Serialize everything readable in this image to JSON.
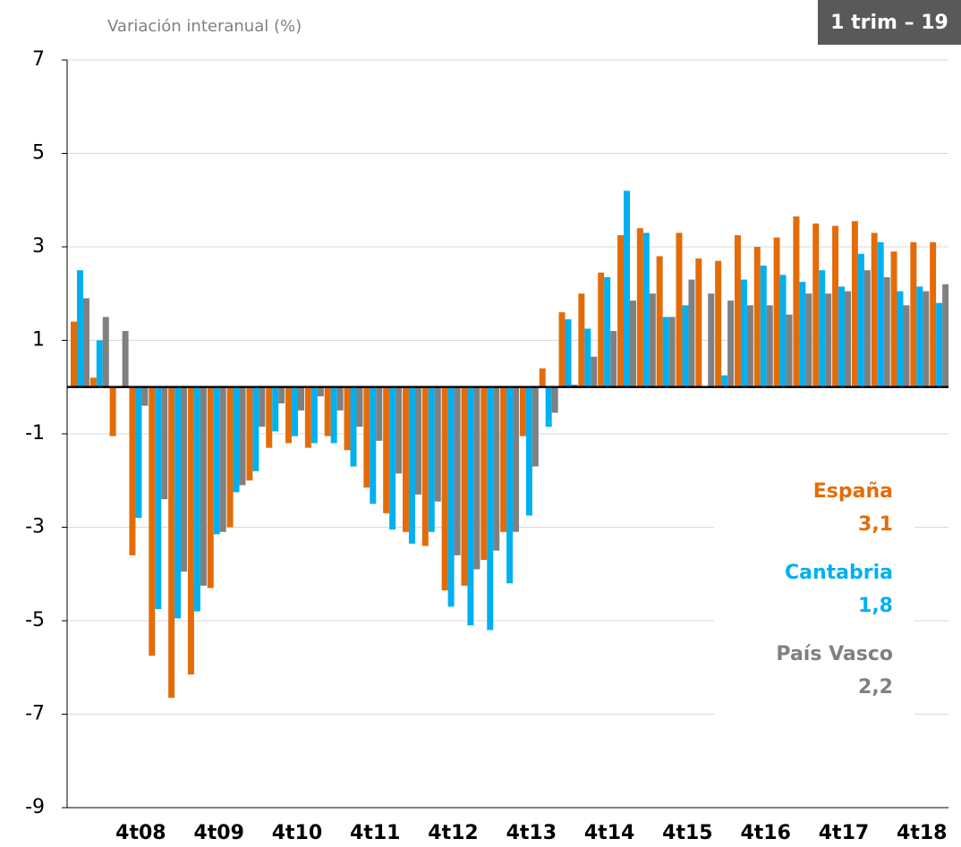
{
  "chart_data": {
    "type": "bar",
    "subtitle": "Variación interanual (%)",
    "badge": "1 trim – 19",
    "categories": [
      null,
      null,
      null,
      "4t08",
      null,
      null,
      null,
      "4t09",
      null,
      null,
      null,
      "4t10",
      null,
      null,
      null,
      "4t11",
      null,
      null,
      null,
      "4t12",
      null,
      null,
      null,
      "4t13",
      null,
      null,
      null,
      "4t14",
      null,
      null,
      null,
      "4t15",
      null,
      null,
      null,
      "4t16",
      null,
      null,
      null,
      "4t17",
      null,
      null,
      null,
      "4t18",
      null
    ],
    "series": [
      {
        "name": "España",
        "color": "#e36c09",
        "latest_label": "3,1",
        "values": [
          1.4,
          0.2,
          -1.05,
          -3.6,
          -5.75,
          -6.65,
          -6.15,
          -4.3,
          -3.0,
          -2.0,
          -1.3,
          -1.2,
          -1.3,
          -1.05,
          -1.35,
          -2.15,
          -2.7,
          -3.1,
          -3.4,
          -4.35,
          -4.25,
          -3.7,
          -3.1,
          -1.05,
          0.4,
          1.6,
          2.0,
          2.45,
          3.25,
          3.4,
          2.8,
          3.3,
          2.75,
          2.7,
          3.25,
          3.0,
          3.2,
          3.65,
          3.5,
          3.45,
          3.55,
          3.3,
          2.9,
          3.1,
          3.1
        ]
      },
      {
        "name": "Cantabria",
        "color": "#00b0f0",
        "latest_label": "1,8",
        "values": [
          2.5,
          1.0,
          0.0,
          -2.8,
          -4.75,
          -4.95,
          -4.8,
          -3.15,
          -2.25,
          -1.8,
          -0.95,
          -1.05,
          -1.2,
          -1.2,
          -1.7,
          -2.5,
          -3.05,
          -3.35,
          -3.1,
          -4.7,
          -5.1,
          -5.2,
          -4.2,
          -2.75,
          -0.85,
          1.45,
          1.25,
          2.35,
          4.2,
          3.3,
          1.5,
          1.75,
          0.0,
          0.25,
          2.3,
          2.6,
          2.4,
          2.25,
          2.5,
          2.15,
          2.85,
          3.1,
          2.05,
          2.15,
          1.8
        ]
      },
      {
        "name": "País Vasco",
        "color": "#808080",
        "latest_label": "2,2",
        "values": [
          1.9,
          1.5,
          1.2,
          -0.4,
          -2.4,
          -3.95,
          -4.25,
          -3.1,
          -2.1,
          -0.85,
          -0.35,
          -0.5,
          -0.2,
          -0.5,
          -0.85,
          -1.15,
          -1.85,
          -2.3,
          -2.45,
          -3.6,
          -3.9,
          -3.5,
          -3.1,
          -1.7,
          -0.55,
          0.05,
          0.65,
          1.2,
          1.85,
          2.0,
          1.5,
          2.3,
          2.0,
          1.85,
          1.75,
          1.75,
          1.55,
          2.0,
          2.0,
          2.05,
          2.5,
          2.35,
          1.75,
          2.05,
          2.2
        ]
      }
    ],
    "ylim": [
      -9,
      7
    ],
    "yticks": [
      -9,
      -7,
      -5,
      -3,
      -1,
      1,
      3,
      5,
      7
    ],
    "grid": true
  }
}
